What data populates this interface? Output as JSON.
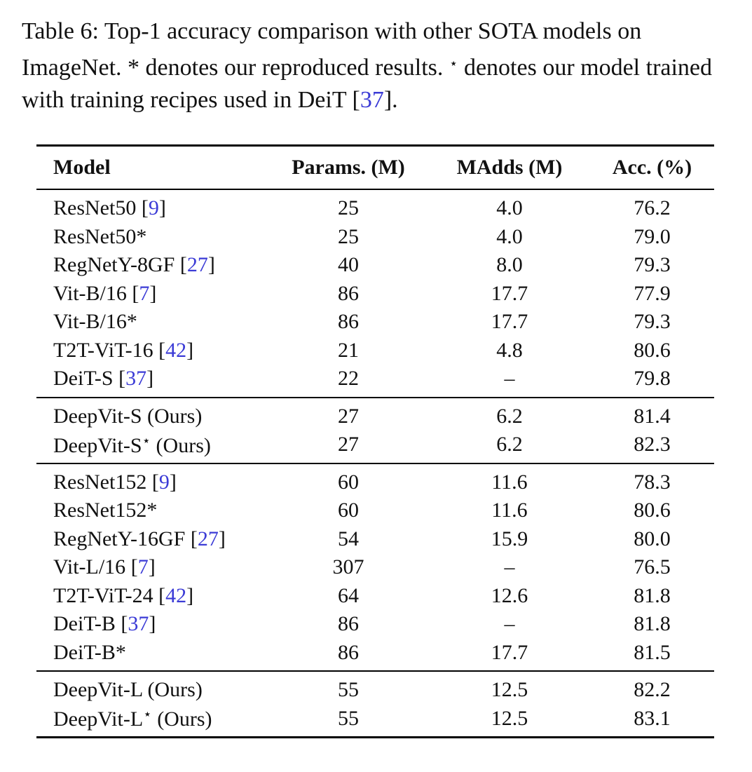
{
  "caption": {
    "label": "Table 6:",
    "text_part1": "Top-1 accuracy comparison with other SOTA models on ImageNet. * denotes our reproduced results.",
    "star_symbol": "⋆",
    "text_part2": "denotes our model trained with training recipes used in DeiT",
    "citation": "37",
    "text_end": "."
  },
  "table": {
    "headers": [
      "Model",
      "Params. (M)",
      "MAdds (M)",
      "Acc. (%)"
    ],
    "groups": [
      [
        {
          "name": "ResNet50",
          "cite": "9",
          "suffix": "",
          "params": "25",
          "madds": "4.0",
          "acc": "76.2"
        },
        {
          "name": "ResNet50*",
          "cite": "",
          "suffix": "",
          "params": "25",
          "madds": "4.0",
          "acc": "79.0"
        },
        {
          "name": "RegNetY-8GF",
          "cite": "27",
          "suffix": "",
          "params": "40",
          "madds": "8.0",
          "acc": "79.3"
        },
        {
          "name": "Vit-B/16",
          "cite": "7",
          "suffix": "",
          "params": "86",
          "madds": "17.7",
          "acc": "77.9"
        },
        {
          "name": "Vit-B/16*",
          "cite": "",
          "suffix": "",
          "params": "86",
          "madds": "17.7",
          "acc": "79.3"
        },
        {
          "name": "T2T-ViT-16",
          "cite": "42",
          "suffix": "",
          "params": "21",
          "madds": "4.8",
          "acc": "80.6"
        },
        {
          "name": "DeiT-S",
          "cite": "37",
          "suffix": "",
          "params": "22",
          "madds": "–",
          "acc": "79.8"
        }
      ],
      [
        {
          "name": "DeepVit-S",
          "cite": "",
          "suffix": "(Ours)",
          "star": "",
          "params": "27",
          "madds": "6.2",
          "acc": "81.4"
        },
        {
          "name": "DeepVit-S",
          "cite": "",
          "suffix": "(Ours)",
          "star": "⋆",
          "params": "27",
          "madds": "6.2",
          "acc": "82.3"
        }
      ],
      [
        {
          "name": "ResNet152",
          "cite": "9",
          "suffix": "",
          "params": "60",
          "madds": "11.6",
          "acc": "78.3"
        },
        {
          "name": "ResNet152*",
          "cite": "",
          "suffix": "",
          "params": "60",
          "madds": "11.6",
          "acc": "80.6"
        },
        {
          "name": "RegNetY-16GF",
          "cite": "27",
          "suffix": "",
          "params": "54",
          "madds": "15.9",
          "acc": "80.0"
        },
        {
          "name": "Vit-L/16",
          "cite": "7",
          "suffix": "",
          "params": "307",
          "madds": "–",
          "acc": "76.5"
        },
        {
          "name": "T2T-ViT-24",
          "cite": "42",
          "suffix": "",
          "params": "64",
          "madds": "12.6",
          "acc": "81.8"
        },
        {
          "name": "DeiT-B",
          "cite": "37",
          "suffix": "",
          "params": "86",
          "madds": "–",
          "acc": "81.8"
        },
        {
          "name": "DeiT-B*",
          "cite": "",
          "suffix": "",
          "params": "86",
          "madds": "17.7",
          "acc": "81.5"
        }
      ],
      [
        {
          "name": "DeepVit-L",
          "cite": "",
          "suffix": "(Ours)",
          "star": "",
          "params": "55",
          "madds": "12.5",
          "acc": "82.2"
        },
        {
          "name": "DeepVit-L",
          "cite": "",
          "suffix": "(Ours)",
          "star": "⋆",
          "params": "55",
          "madds": "12.5",
          "acc": "83.1"
        }
      ]
    ]
  }
}
